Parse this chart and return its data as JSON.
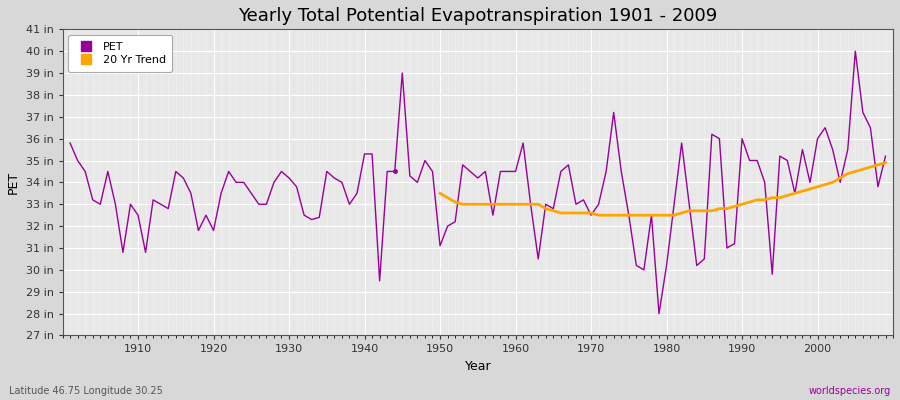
{
  "title": "Yearly Total Potential Evapotranspiration 1901 - 2009",
  "xlabel": "Year",
  "ylabel": "PET",
  "footnote_left": "Latitude 46.75 Longitude 30.25",
  "footnote_right": "worldspecies.org",
  "pet_color": "#990099",
  "trend_color": "#FFA500",
  "bg_color": "#d8d8d8",
  "plot_bg_color": "#e8e8e8",
  "grid_color": "#ffffff",
  "ylim_min": 27,
  "ylim_max": 41,
  "xlim_min": 1900,
  "xlim_max": 2010,
  "years": [
    1901,
    1902,
    1903,
    1904,
    1905,
    1906,
    1907,
    1908,
    1909,
    1910,
    1911,
    1912,
    1913,
    1914,
    1915,
    1916,
    1917,
    1918,
    1919,
    1920,
    1921,
    1922,
    1923,
    1924,
    1925,
    1926,
    1927,
    1928,
    1929,
    1930,
    1931,
    1932,
    1933,
    1934,
    1935,
    1936,
    1937,
    1938,
    1939,
    1940,
    1941,
    1942,
    1943,
    1944,
    1945,
    1946,
    1947,
    1948,
    1949,
    1950,
    1951,
    1952,
    1953,
    1954,
    1955,
    1956,
    1957,
    1958,
    1959,
    1960,
    1961,
    1962,
    1963,
    1964,
    1965,
    1966,
    1967,
    1968,
    1969,
    1970,
    1971,
    1972,
    1973,
    1974,
    1975,
    1976,
    1977,
    1978,
    1979,
    1980,
    1981,
    1982,
    1983,
    1984,
    1985,
    1986,
    1987,
    1988,
    1989,
    1990,
    1991,
    1992,
    1993,
    1994,
    1995,
    1996,
    1997,
    1998,
    1999,
    2000,
    2001,
    2002,
    2003,
    2004,
    2005,
    2006,
    2007,
    2008,
    2009
  ],
  "pet_values": [
    35.8,
    35.0,
    34.5,
    33.2,
    33.0,
    34.5,
    33.0,
    30.8,
    33.0,
    32.5,
    30.8,
    33.2,
    33.0,
    32.8,
    34.5,
    34.2,
    33.5,
    31.8,
    32.5,
    31.8,
    33.5,
    34.5,
    34.0,
    34.0,
    33.5,
    33.0,
    33.0,
    34.0,
    34.5,
    34.2,
    33.8,
    32.5,
    32.3,
    32.4,
    34.5,
    34.2,
    34.0,
    33.0,
    33.5,
    35.3,
    35.3,
    29.5,
    34.5,
    34.5,
    39.0,
    34.3,
    34.0,
    35.0,
    34.5,
    31.1,
    32.0,
    32.2,
    34.8,
    34.5,
    34.2,
    34.5,
    32.5,
    34.5,
    34.5,
    34.5,
    35.8,
    33.0,
    30.5,
    33.0,
    32.8,
    34.5,
    34.8,
    33.0,
    33.2,
    32.5,
    33.0,
    34.5,
    37.2,
    34.5,
    32.5,
    30.2,
    30.0,
    32.5,
    28.0,
    30.2,
    33.0,
    35.8,
    33.0,
    30.2,
    30.5,
    36.2,
    36.0,
    31.0,
    31.2,
    36.0,
    35.0,
    35.0,
    34.0,
    29.8,
    35.2,
    35.0,
    33.5,
    35.5,
    34.0,
    36.0,
    36.5,
    35.5,
    34.0,
    35.5,
    40.0,
    37.2,
    36.5,
    33.8,
    35.2
  ],
  "trend_years": [
    1950,
    1951,
    1952,
    1953,
    1954,
    1955,
    1956,
    1957,
    1958,
    1959,
    1960,
    1961,
    1962,
    1963,
    1964,
    1965,
    1966,
    1967,
    1968,
    1969,
    1970,
    1971,
    1972,
    1973,
    1974,
    1975,
    1976,
    1977,
    1978,
    1979,
    1980,
    1981,
    1982,
    1983,
    1984,
    1985,
    1986,
    1987,
    1988,
    1989,
    1990,
    1991,
    1992,
    1993,
    1994,
    1995,
    1996,
    1997,
    1998,
    1999,
    2000,
    2001,
    2002,
    2003,
    2004,
    2005,
    2006,
    2007,
    2008,
    2009
  ],
  "trend_values": [
    33.5,
    33.3,
    33.1,
    33.0,
    33.0,
    33.0,
    33.0,
    33.0,
    33.0,
    33.0,
    33.0,
    33.0,
    33.0,
    33.0,
    32.8,
    32.7,
    32.6,
    32.6,
    32.6,
    32.6,
    32.6,
    32.5,
    32.5,
    32.5,
    32.5,
    32.5,
    32.5,
    32.5,
    32.5,
    32.5,
    32.5,
    32.5,
    32.6,
    32.7,
    32.7,
    32.7,
    32.7,
    32.8,
    32.8,
    32.9,
    33.0,
    33.1,
    33.2,
    33.2,
    33.3,
    33.3,
    33.4,
    33.5,
    33.6,
    33.7,
    33.8,
    33.9,
    34.0,
    34.2,
    34.4,
    34.5,
    34.6,
    34.7,
    34.8,
    34.9
  ],
  "dot_year": 1944,
  "dot_value": 34.5,
  "legend_pet_label": "PET",
  "legend_trend_label": "20 Yr Trend",
  "title_fontsize": 13,
  "axis_label_fontsize": 9,
  "tick_fontsize": 8,
  "footnote_fontsize": 7
}
